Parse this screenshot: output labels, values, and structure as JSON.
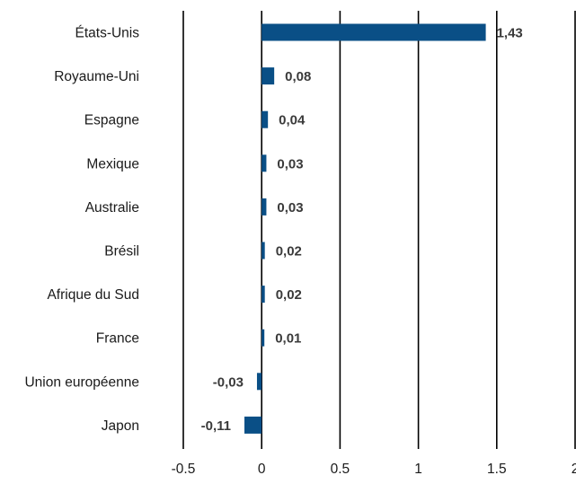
{
  "chart_data": {
    "type": "bar",
    "orientation": "horizontal",
    "title": "",
    "xlabel": "",
    "ylabel": "",
    "categories": [
      "États-Unis",
      "Royaume-Uni",
      "Espagne",
      "Mexique",
      "Australie",
      "Brésil",
      "Afrique du Sud",
      "France",
      "Union européenne",
      "Japon"
    ],
    "values": [
      1.43,
      0.08,
      0.04,
      0.03,
      0.03,
      0.02,
      0.02,
      0.01,
      -0.03,
      -0.11
    ],
    "value_labels": [
      "1,43",
      "0,08",
      "0,04",
      "0,03",
      "0,03",
      "0,02",
      "0,02",
      "0,01",
      "-0,03",
      "-0,11"
    ],
    "xlim": [
      -0.5,
      2
    ],
    "xticks": [
      -0.5,
      0,
      0.5,
      1,
      1.5,
      2
    ],
    "xtick_labels": [
      "-0.5",
      "0",
      "0.5",
      "1",
      "1.5",
      "2"
    ],
    "grid": "vertical",
    "legend": "none",
    "colors": {
      "bar": "#0a4f86",
      "grid": "#000000",
      "text": "#1a1a1a",
      "value_text": "#3a3a3a"
    }
  }
}
